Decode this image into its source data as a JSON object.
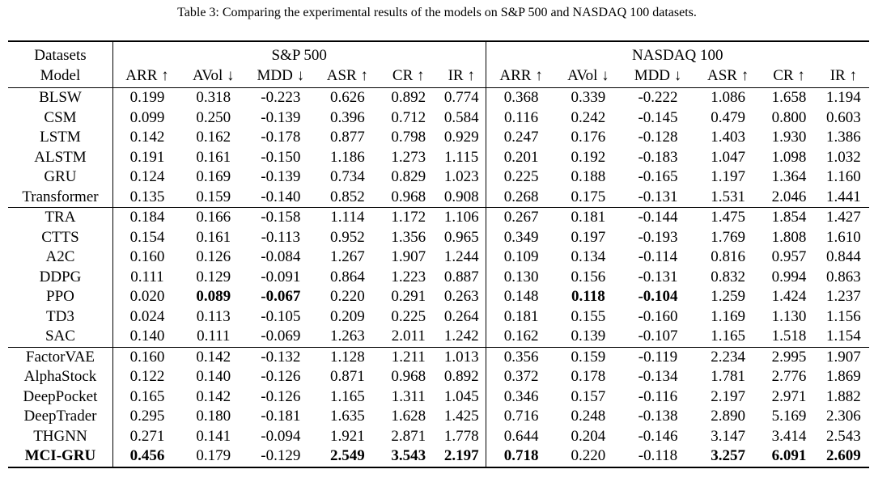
{
  "caption": "Table 3: Comparing the experimental results of the models on S&P 500 and NASDAQ 100 datasets.",
  "header": {
    "datasets_label": "Datasets",
    "model_label": "Model",
    "groups": [
      "S&P 500",
      "NASDAQ 100"
    ],
    "metrics": [
      "ARR ↑",
      "AVol ↓",
      "MDD ↓",
      "ASR ↑",
      "CR ↑",
      "IR ↑"
    ]
  },
  "rows": [
    {
      "model": "BLSW",
      "values": [
        "0.199",
        "0.318",
        "-0.223",
        "0.626",
        "0.892",
        "0.774",
        "0.368",
        "0.339",
        "-0.222",
        "1.086",
        "1.658",
        "1.194"
      ],
      "bold": []
    },
    {
      "model": "CSM",
      "values": [
        "0.099",
        "0.250",
        "-0.139",
        "0.396",
        "0.712",
        "0.584",
        "0.116",
        "0.242",
        "-0.145",
        "0.479",
        "0.800",
        "0.603"
      ],
      "bold": []
    },
    {
      "model": "LSTM",
      "values": [
        "0.142",
        "0.162",
        "-0.178",
        "0.877",
        "0.798",
        "0.929",
        "0.247",
        "0.176",
        "-0.128",
        "1.403",
        "1.930",
        "1.386"
      ],
      "bold": []
    },
    {
      "model": "ALSTM",
      "values": [
        "0.191",
        "0.161",
        "-0.150",
        "1.186",
        "1.273",
        "1.115",
        "0.201",
        "0.192",
        "-0.183",
        "1.047",
        "1.098",
        "1.032"
      ],
      "bold": []
    },
    {
      "model": "GRU",
      "values": [
        "0.124",
        "0.169",
        "-0.139",
        "0.734",
        "0.829",
        "1.023",
        "0.225",
        "0.188",
        "-0.165",
        "1.197",
        "1.364",
        "1.160"
      ],
      "bold": []
    },
    {
      "model": "Transformer",
      "values": [
        "0.135",
        "0.159",
        "-0.140",
        "0.852",
        "0.968",
        "0.908",
        "0.268",
        "0.175",
        "-0.131",
        "1.531",
        "2.046",
        "1.441"
      ],
      "bold": []
    },
    {
      "model": "TRA",
      "values": [
        "0.184",
        "0.166",
        "-0.158",
        "1.114",
        "1.172",
        "1.106",
        "0.267",
        "0.181",
        "-0.144",
        "1.475",
        "1.854",
        "1.427"
      ],
      "bold": []
    },
    {
      "model": "CTTS",
      "values": [
        "0.154",
        "0.161",
        "-0.113",
        "0.952",
        "1.356",
        "0.965",
        "0.349",
        "0.197",
        "-0.193",
        "1.769",
        "1.808",
        "1.610"
      ],
      "bold": []
    },
    {
      "model": "A2C",
      "values": [
        "0.160",
        "0.126",
        "-0.084",
        "1.267",
        "1.907",
        "1.244",
        "0.109",
        "0.134",
        "-0.114",
        "0.816",
        "0.957",
        "0.844"
      ],
      "bold": []
    },
    {
      "model": "DDPG",
      "values": [
        "0.111",
        "0.129",
        "-0.091",
        "0.864",
        "1.223",
        "0.887",
        "0.130",
        "0.156",
        "-0.131",
        "0.832",
        "0.994",
        "0.863"
      ],
      "bold": []
    },
    {
      "model": "PPO",
      "values": [
        "0.020",
        "0.089",
        "-0.067",
        "0.220",
        "0.291",
        "0.263",
        "0.148",
        "0.118",
        "-0.104",
        "1.259",
        "1.424",
        "1.237"
      ],
      "bold": [
        1,
        2,
        7,
        8
      ]
    },
    {
      "model": "TD3",
      "values": [
        "0.024",
        "0.113",
        "-0.105",
        "0.209",
        "0.225",
        "0.264",
        "0.181",
        "0.155",
        "-0.160",
        "1.169",
        "1.130",
        "1.156"
      ],
      "bold": []
    },
    {
      "model": "SAC",
      "values": [
        "0.140",
        "0.111",
        "-0.069",
        "1.263",
        "2.011",
        "1.242",
        "0.162",
        "0.139",
        "-0.107",
        "1.165",
        "1.518",
        "1.154"
      ],
      "bold": []
    },
    {
      "model": "FactorVAE",
      "values": [
        "0.160",
        "0.142",
        "-0.132",
        "1.128",
        "1.211",
        "1.013",
        "0.356",
        "0.159",
        "-0.119",
        "2.234",
        "2.995",
        "1.907"
      ],
      "bold": []
    },
    {
      "model": "AlphaStock",
      "values": [
        "0.122",
        "0.140",
        "-0.126",
        "0.871",
        "0.968",
        "0.892",
        "0.372",
        "0.178",
        "-0.134",
        "1.781",
        "2.776",
        "1.869"
      ],
      "bold": []
    },
    {
      "model": "DeepPocket",
      "values": [
        "0.165",
        "0.142",
        "-0.126",
        "1.165",
        "1.311",
        "1.045",
        "0.346",
        "0.157",
        "-0.116",
        "2.197",
        "2.971",
        "1.882"
      ],
      "bold": []
    },
    {
      "model": "DeepTrader",
      "values": [
        "0.295",
        "0.180",
        "-0.181",
        "1.635",
        "1.628",
        "1.425",
        "0.716",
        "0.248",
        "-0.138",
        "2.890",
        "5.169",
        "2.306"
      ],
      "bold": []
    },
    {
      "model": "THGNN",
      "values": [
        "0.271",
        "0.141",
        "-0.094",
        "1.921",
        "2.871",
        "1.778",
        "0.644",
        "0.204",
        "-0.146",
        "3.147",
        "3.414",
        "2.543"
      ],
      "bold": []
    },
    {
      "model": "MCI-GRU",
      "values": [
        "0.456",
        "0.179",
        "-0.129",
        "2.549",
        "3.543",
        "2.197",
        "0.718",
        "0.220",
        "-0.118",
        "3.257",
        "6.091",
        "2.609"
      ],
      "bold": [
        0,
        3,
        4,
        5,
        6,
        9,
        10,
        11
      ],
      "bold_model": true
    }
  ],
  "group_starts": [
    6,
    13
  ]
}
